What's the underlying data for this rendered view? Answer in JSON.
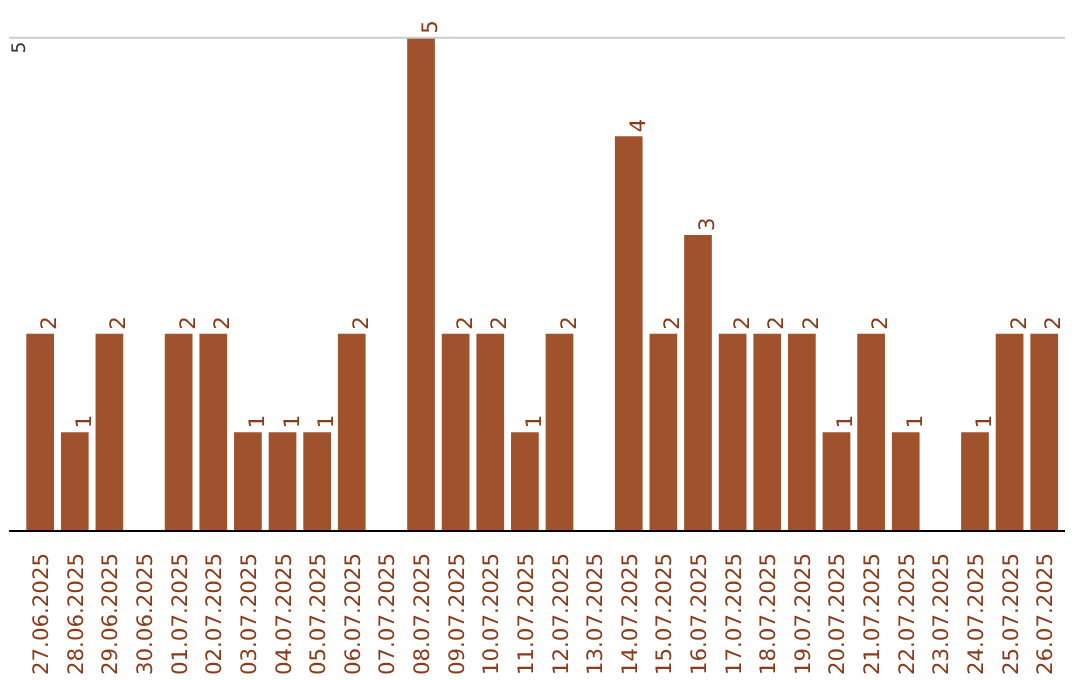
{
  "chart_data": {
    "type": "bar",
    "categories": [
      "27.06.2025",
      "28.06.2025",
      "29.06.2025",
      "30.06.2025",
      "01.07.2025",
      "02.07.2025",
      "03.07.2025",
      "04.07.2025",
      "05.07.2025",
      "06.07.2025",
      "07.07.2025",
      "08.07.2025",
      "09.07.2025",
      "10.07.2025",
      "11.07.2025",
      "12.07.2025",
      "13.07.2025",
      "14.07.2025",
      "15.07.2025",
      "16.07.2025",
      "17.07.2025",
      "18.07.2025",
      "19.07.2025",
      "20.07.2025",
      "21.07.2025",
      "22.07.2025",
      "23.07.2025",
      "24.07.2025",
      "25.07.2025",
      "26.07.2025"
    ],
    "values": [
      2,
      1,
      2,
      0,
      2,
      2,
      1,
      1,
      1,
      2,
      0,
      5,
      2,
      2,
      1,
      2,
      0,
      4,
      2,
      3,
      2,
      2,
      2,
      1,
      2,
      1,
      0,
      1,
      2,
      2
    ],
    "value_labels": [
      "2",
      "1",
      "2",
      null,
      "2",
      "2",
      "1",
      "1",
      "1",
      "2",
      null,
      "5",
      "2",
      "2",
      "1",
      "2",
      null,
      "4",
      "2",
      "3",
      "2",
      "2",
      "2",
      "1",
      "2",
      "1",
      null,
      "1",
      "2",
      "2"
    ],
    "data_labels": true,
    "color": "#a0522d",
    "ref_lines": [
      {
        "axis": "y",
        "value": 5,
        "label": "5",
        "color": "#cccccc"
      }
    ]
  }
}
